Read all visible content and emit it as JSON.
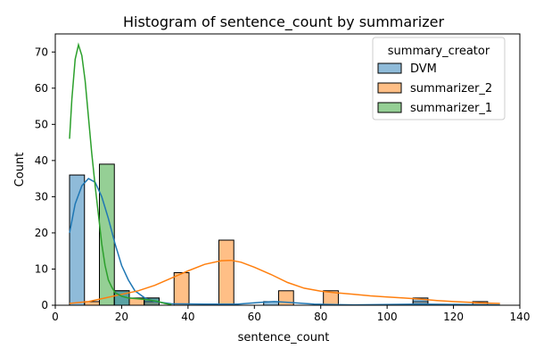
{
  "chart_data": {
    "type": "histogram",
    "title": "Histogram of sentence_count by summarizer",
    "xlabel": "sentence_count",
    "ylabel": "Count",
    "xlim": [
      0,
      140
    ],
    "ylim": [
      0,
      75
    ],
    "xticks": [
      0,
      20,
      40,
      60,
      80,
      100,
      120,
      140
    ],
    "yticks": [
      0,
      10,
      20,
      30,
      40,
      50,
      60,
      70
    ],
    "grid": false,
    "legend": {
      "title": "summary_creator",
      "placement": "top-right"
    },
    "bin_width": 4.5,
    "series": [
      {
        "name": "DVM",
        "color": "#1f77b4",
        "bins": [
          {
            "x0": 4.3,
            "x1": 8.8,
            "count": 36
          },
          {
            "x0": 17.8,
            "x1": 22.3,
            "count": 4
          },
          {
            "x0": 26.8,
            "x1": 31.3,
            "count": 2
          },
          {
            "x0": 62.8,
            "x1": 67.3,
            "count": 1
          },
          {
            "x0": 107.8,
            "x1": 112.3,
            "count": 2
          }
        ],
        "kde": [
          [
            4.3,
            20
          ],
          [
            6,
            28
          ],
          [
            8,
            33
          ],
          [
            10,
            35
          ],
          [
            12,
            34
          ],
          [
            14,
            30
          ],
          [
            16,
            24
          ],
          [
            18,
            17
          ],
          [
            20,
            11
          ],
          [
            22,
            7
          ],
          [
            24,
            4
          ],
          [
            27,
            2
          ],
          [
            30,
            1
          ],
          [
            35,
            0.4
          ],
          [
            45,
            0.3
          ],
          [
            55,
            0.3
          ],
          [
            62,
            0.8
          ],
          [
            66,
            1
          ],
          [
            70,
            0.8
          ],
          [
            78,
            0.3
          ],
          [
            90,
            0.1
          ],
          [
            110,
            0.3
          ],
          [
            125,
            0.2
          ],
          [
            134,
            0.1
          ]
        ]
      },
      {
        "name": "summarizer_2",
        "color": "#ff7f0e",
        "bins": [
          {
            "x0": 8.8,
            "x1": 13.3,
            "count": 1
          },
          {
            "x0": 22.3,
            "x1": 26.8,
            "count": 2
          },
          {
            "x0": 26.8,
            "x1": 31.3,
            "count": 1
          },
          {
            "x0": 35.8,
            "x1": 40.3,
            "count": 9
          },
          {
            "x0": 49.3,
            "x1": 53.8,
            "count": 18
          },
          {
            "x0": 67.3,
            "x1": 71.8,
            "count": 4
          },
          {
            "x0": 80.8,
            "x1": 85.3,
            "count": 4
          },
          {
            "x0": 107.8,
            "x1": 112.3,
            "count": 1
          },
          {
            "x0": 125.8,
            "x1": 130.3,
            "count": 1
          }
        ],
        "kde": [
          [
            4.3,
            0.5
          ],
          [
            10,
            1
          ],
          [
            15,
            2
          ],
          [
            20,
            3
          ],
          [
            25,
            4
          ],
          [
            30,
            5.5
          ],
          [
            35,
            7.5
          ],
          [
            40,
            9.5
          ],
          [
            45,
            11.3
          ],
          [
            50,
            12.3
          ],
          [
            53,
            12.4
          ],
          [
            56,
            11.9
          ],
          [
            60,
            10.5
          ],
          [
            65,
            8.5
          ],
          [
            70,
            6.3
          ],
          [
            75,
            4.7
          ],
          [
            80,
            3.9
          ],
          [
            85,
            3.4
          ],
          [
            90,
            3
          ],
          [
            95,
            2.6
          ],
          [
            100,
            2.3
          ],
          [
            105,
            2
          ],
          [
            110,
            1.7
          ],
          [
            115,
            1.3
          ],
          [
            120,
            1
          ],
          [
            125,
            0.8
          ],
          [
            130,
            0.6
          ],
          [
            134,
            0.5
          ]
        ]
      },
      {
        "name": "summarizer_1",
        "color": "#2ca02c",
        "bins": [
          {
            "x0": 13.3,
            "x1": 17.8,
            "count": 39
          },
          {
            "x0": 17.8,
            "x1": 22.3,
            "count": 4
          },
          {
            "x0": 26.8,
            "x1": 31.3,
            "count": 2
          }
        ],
        "kde": [
          [
            4.3,
            46
          ],
          [
            5,
            57
          ],
          [
            6,
            68
          ],
          [
            7,
            72
          ],
          [
            8,
            69
          ],
          [
            9,
            62
          ],
          [
            10,
            52
          ],
          [
            11,
            42
          ],
          [
            12,
            33
          ],
          [
            13,
            25
          ],
          [
            14,
            17
          ],
          [
            15,
            11
          ],
          [
            16,
            7
          ],
          [
            17,
            5
          ],
          [
            18,
            3.5
          ],
          [
            20,
            2.5
          ],
          [
            22,
            2
          ],
          [
            25,
            1.8
          ],
          [
            28,
            1.5
          ],
          [
            31,
            1
          ],
          [
            33,
            0.5
          ],
          [
            35,
            0.2
          ]
        ]
      }
    ]
  }
}
